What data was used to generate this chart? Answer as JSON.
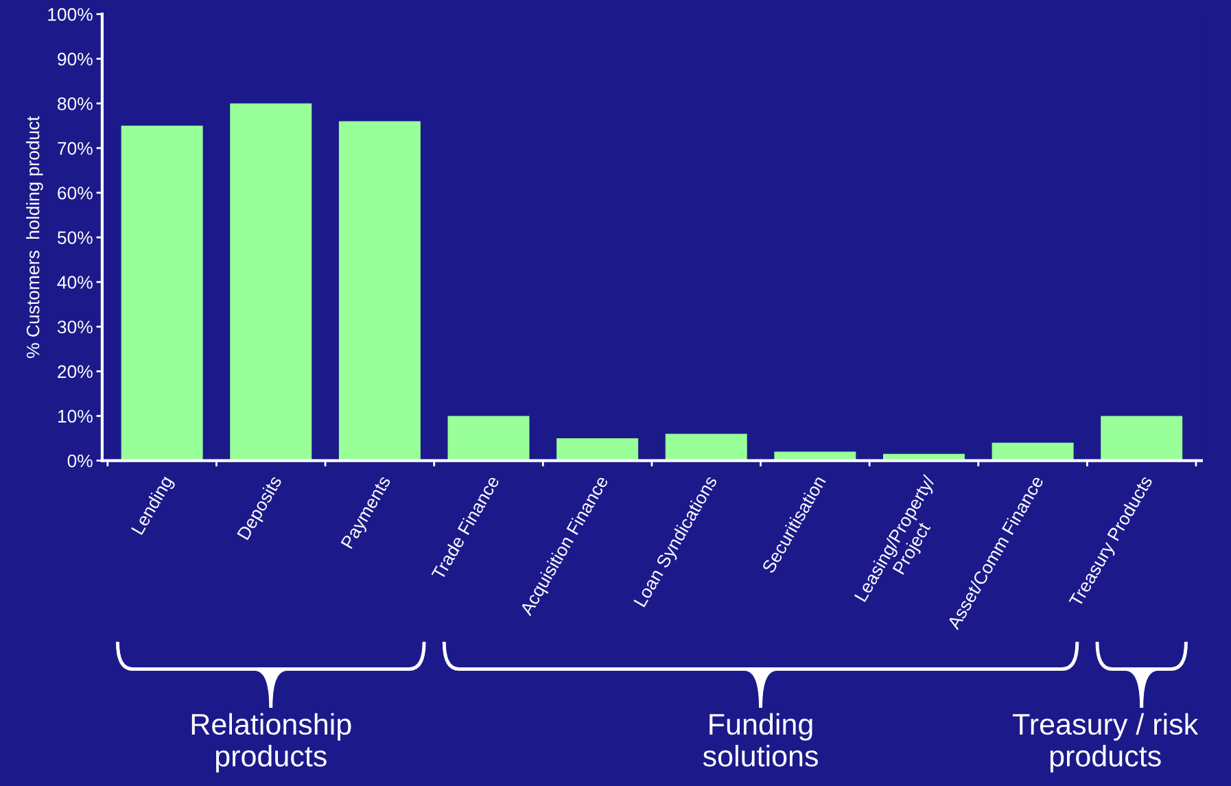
{
  "chart_data": {
    "type": "bar",
    "ylabel": "% Customers  holding product",
    "categories": [
      "Lending",
      "Deposits",
      "Payments",
      "Trade Finance",
      "Acquisition Finance",
      "Loan Syndications",
      "Securitisation",
      "Leasing/Property/\nProject",
      "Asset/Comm Finance",
      "Treasury Products"
    ],
    "values": [
      75,
      80,
      76,
      10,
      5,
      6,
      2,
      1.5,
      4,
      10
    ],
    "color": "#99ff99",
    "ylim": [
      0,
      100
    ],
    "yticks": [
      {
        "value": 0,
        "label": "0%"
      },
      {
        "value": 10,
        "label": "10%"
      },
      {
        "value": 20,
        "label": "20%"
      },
      {
        "value": 30,
        "label": "30%"
      },
      {
        "value": 40,
        "label": "40%"
      },
      {
        "value": 50,
        "label": "50%"
      },
      {
        "value": 60,
        "label": "60%"
      },
      {
        "value": 70,
        "label": "70%"
      },
      {
        "value": 80,
        "label": "80%"
      },
      {
        "value": 90,
        "label": "90%"
      },
      {
        "value": 100,
        "label": "100%"
      }
    ],
    "grid": false,
    "annotations": [
      "Relationship\nproducts",
      "Funding\nsolutions",
      "Treasury / risk\nproducts"
    ]
  }
}
